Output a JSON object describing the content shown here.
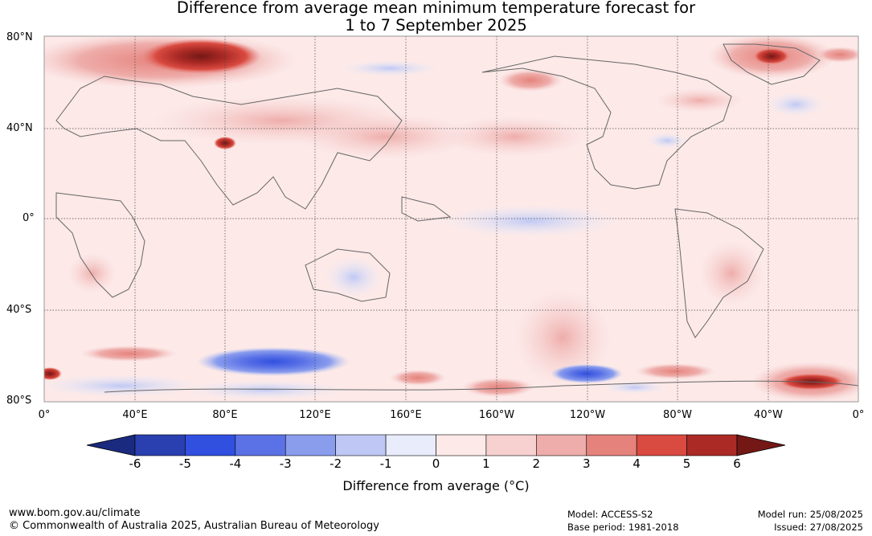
{
  "title": {
    "line1": "Difference from average mean minimum temperature forecast for",
    "line2": "1 to 7 September 2025"
  },
  "map": {
    "lat_labels": [
      "80°N",
      "40°N",
      "0°",
      "40°S",
      "80°S"
    ],
    "lon_labels": [
      "0°",
      "40°E",
      "80°E",
      "120°E",
      "160°E",
      "160°W",
      "120°W",
      "80°W",
      "40°W",
      "0°"
    ]
  },
  "colorbar": {
    "ticks": [
      "-6",
      "-5",
      "-4",
      "-3",
      "-2",
      "-1",
      "0",
      "1",
      "2",
      "3",
      "4",
      "5",
      "6"
    ],
    "colors": [
      "#1a2a7e",
      "#2a3fb0",
      "#3150e0",
      "#5b72e6",
      "#8a9ded",
      "#bfc8f4",
      "#e8ecfb",
      "#fce9e8",
      "#f6d1d0",
      "#eeadaa",
      "#e6827c",
      "#d94a40",
      "#ab2a25",
      "#741815"
    ],
    "label": "Difference from average (°C)"
  },
  "footer": {
    "url": "www.bom.gov.au/climate",
    "copyright": "© Commonwealth of Australia 2025, Australian Bureau of Meteorology",
    "model": "Model: ACCESS-S2",
    "base_period": "Base period: 1981-2018",
    "model_run": "Model run: 25/08/2025",
    "issued": "Issued: 27/08/2025"
  }
}
